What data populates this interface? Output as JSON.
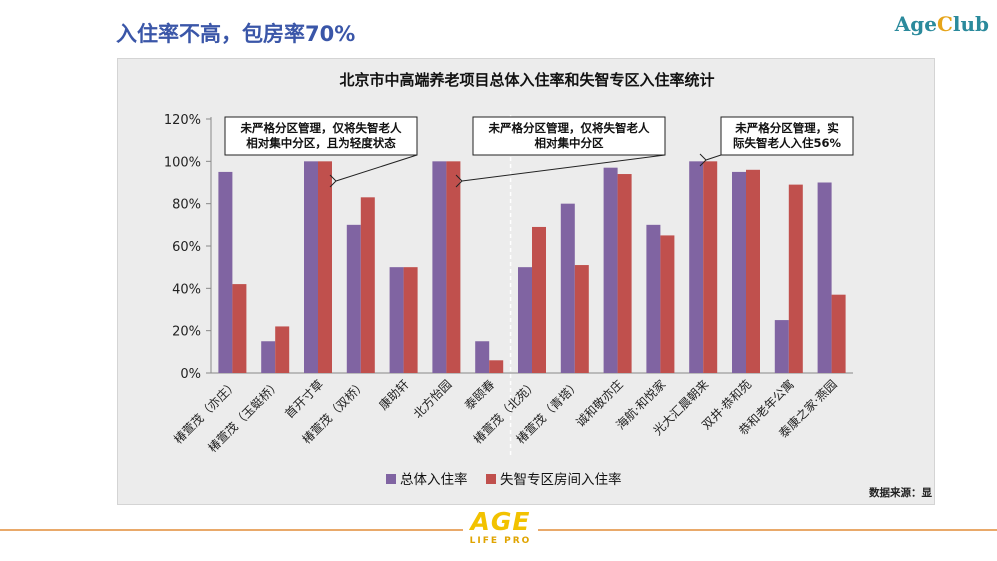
{
  "slide": {
    "title": "入住率不高，包房率70%",
    "brand_age": "Age",
    "brand_c": "C",
    "brand_lub": "lub"
  },
  "footer": {
    "logo_main": "AGE",
    "logo_sub": "LIFE PRO"
  },
  "chart_data": {
    "type": "bar",
    "title": "北京市中高端养老项目总体入住率和失智专区入住率统计",
    "source": "数据来源：显",
    "categories": [
      "椿萱茂（亦庄）",
      "椿萱茂（玉蜓桥）",
      "首开寸草",
      "椿萱茂（双桥）",
      "康助轩",
      "北方怡园",
      "泰颐春",
      "椿萱茂（北苑）",
      "椿萱茂（青塔）",
      "诚和敬亦庄",
      "海航·和悦家",
      "光大汇晨朝来",
      "双井·恭和苑",
      "恭和老年公寓",
      "泰康之家·燕园"
    ],
    "series": [
      {
        "name": "总体入住率",
        "color": "#8064a2",
        "values": [
          95,
          15,
          100,
          70,
          50,
          100,
          15,
          50,
          80,
          97,
          70,
          100,
          95,
          25,
          90
        ]
      },
      {
        "name": "失智专区房间入住率",
        "color": "#c0504d",
        "values": [
          42,
          22,
          100,
          83,
          50,
          100,
          6,
          69,
          51,
          94,
          65,
          100,
          96,
          89,
          37
        ]
      }
    ],
    "ylim": [
      0,
      120
    ],
    "yticks": [
      "0%",
      "20%",
      "40%",
      "60%",
      "80%",
      "100%",
      "120%"
    ],
    "legend_position": "bottom",
    "annotations": [
      {
        "lines": [
          "未严格分区管理，仅将失智老人",
          "相对集中分区，且为轻度状态"
        ],
        "target_category": 2
      },
      {
        "lines": [
          "未严格分区管理，仅将失智老人",
          "相对集中分区"
        ],
        "target_category": 5
      },
      {
        "lines": [
          "未严格分区管理，实",
          "际失智老人入住56%"
        ],
        "target_category": 11
      }
    ]
  }
}
